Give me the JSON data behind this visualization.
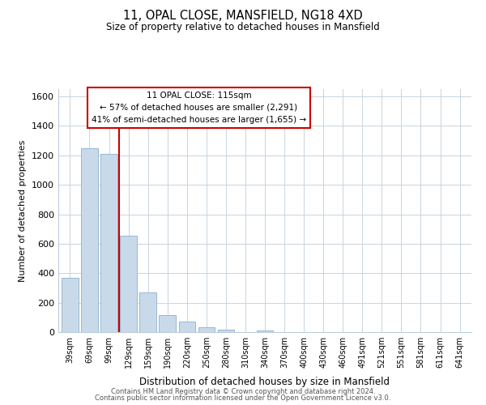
{
  "title": "11, OPAL CLOSE, MANSFIELD, NG18 4XD",
  "subtitle": "Size of property relative to detached houses in Mansfield",
  "bar_values": [
    370,
    1250,
    1210,
    655,
    270,
    115,
    70,
    35,
    15,
    0,
    10,
    0,
    0,
    0,
    0,
    0,
    0,
    0,
    0,
    0,
    0
  ],
  "bar_labels": [
    "39sqm",
    "69sqm",
    "99sqm",
    "129sqm",
    "159sqm",
    "190sqm",
    "220sqm",
    "250sqm",
    "280sqm",
    "310sqm",
    "340sqm",
    "370sqm",
    "400sqm",
    "430sqm",
    "460sqm",
    "491sqm",
    "521sqm",
    "551sqm",
    "581sqm",
    "611sqm",
    "641sqm"
  ],
  "bar_color": "#c8daea",
  "bar_edgecolor": "#8ab0cc",
  "vline_x": 2.5,
  "vline_color": "#cc0000",
  "ylabel": "Number of detached properties",
  "xlabel": "Distribution of detached houses by size in Mansfield",
  "ylim": [
    0,
    1650
  ],
  "yticks": [
    0,
    200,
    400,
    600,
    800,
    1000,
    1200,
    1400,
    1600
  ],
  "annotation_title": "11 OPAL CLOSE: 115sqm",
  "annotation_line1": "← 57% of detached houses are smaller (2,291)",
  "annotation_line2": "41% of semi-detached houses are larger (1,655) →",
  "footer_line1": "Contains HM Land Registry data © Crown copyright and database right 2024.",
  "footer_line2": "Contains public sector information licensed under the Open Government Licence v3.0.",
  "background_color": "#ffffff",
  "grid_color": "#c8d4de"
}
